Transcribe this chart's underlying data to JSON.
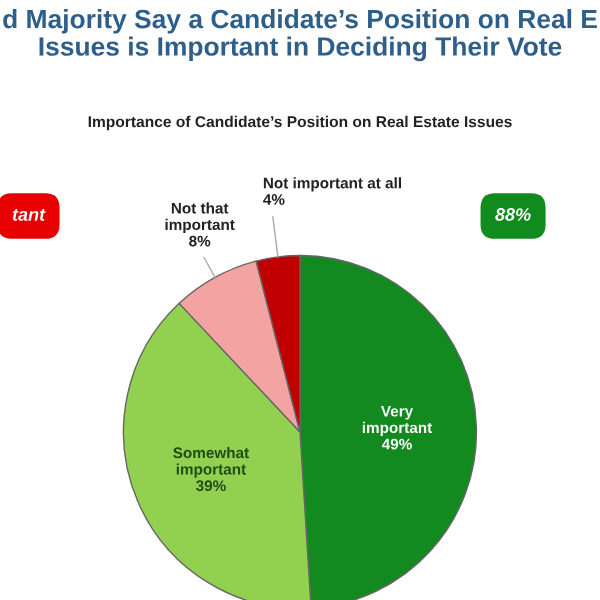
{
  "chart_data": {
    "type": "pie",
    "title": "d Majority Say a Candidate’s Position on Real E\nIssues is Important in Deciding Their Vote",
    "subtitle": "Importance of Candidate’s Position on Real Estate Issues",
    "categories": [
      "Very\nimportant",
      "Somewhat\nimportant",
      "Not that\nimportant",
      "Not important at all"
    ],
    "values": [
      49,
      39,
      8,
      4
    ],
    "value_labels": [
      "49%",
      "39%",
      "8%",
      "4%"
    ],
    "colors": [
      "#138a1f",
      "#92d050",
      "#f4a3a3",
      "#c00000"
    ],
    "annotations": [
      "tant",
      "88%"
    ]
  }
}
